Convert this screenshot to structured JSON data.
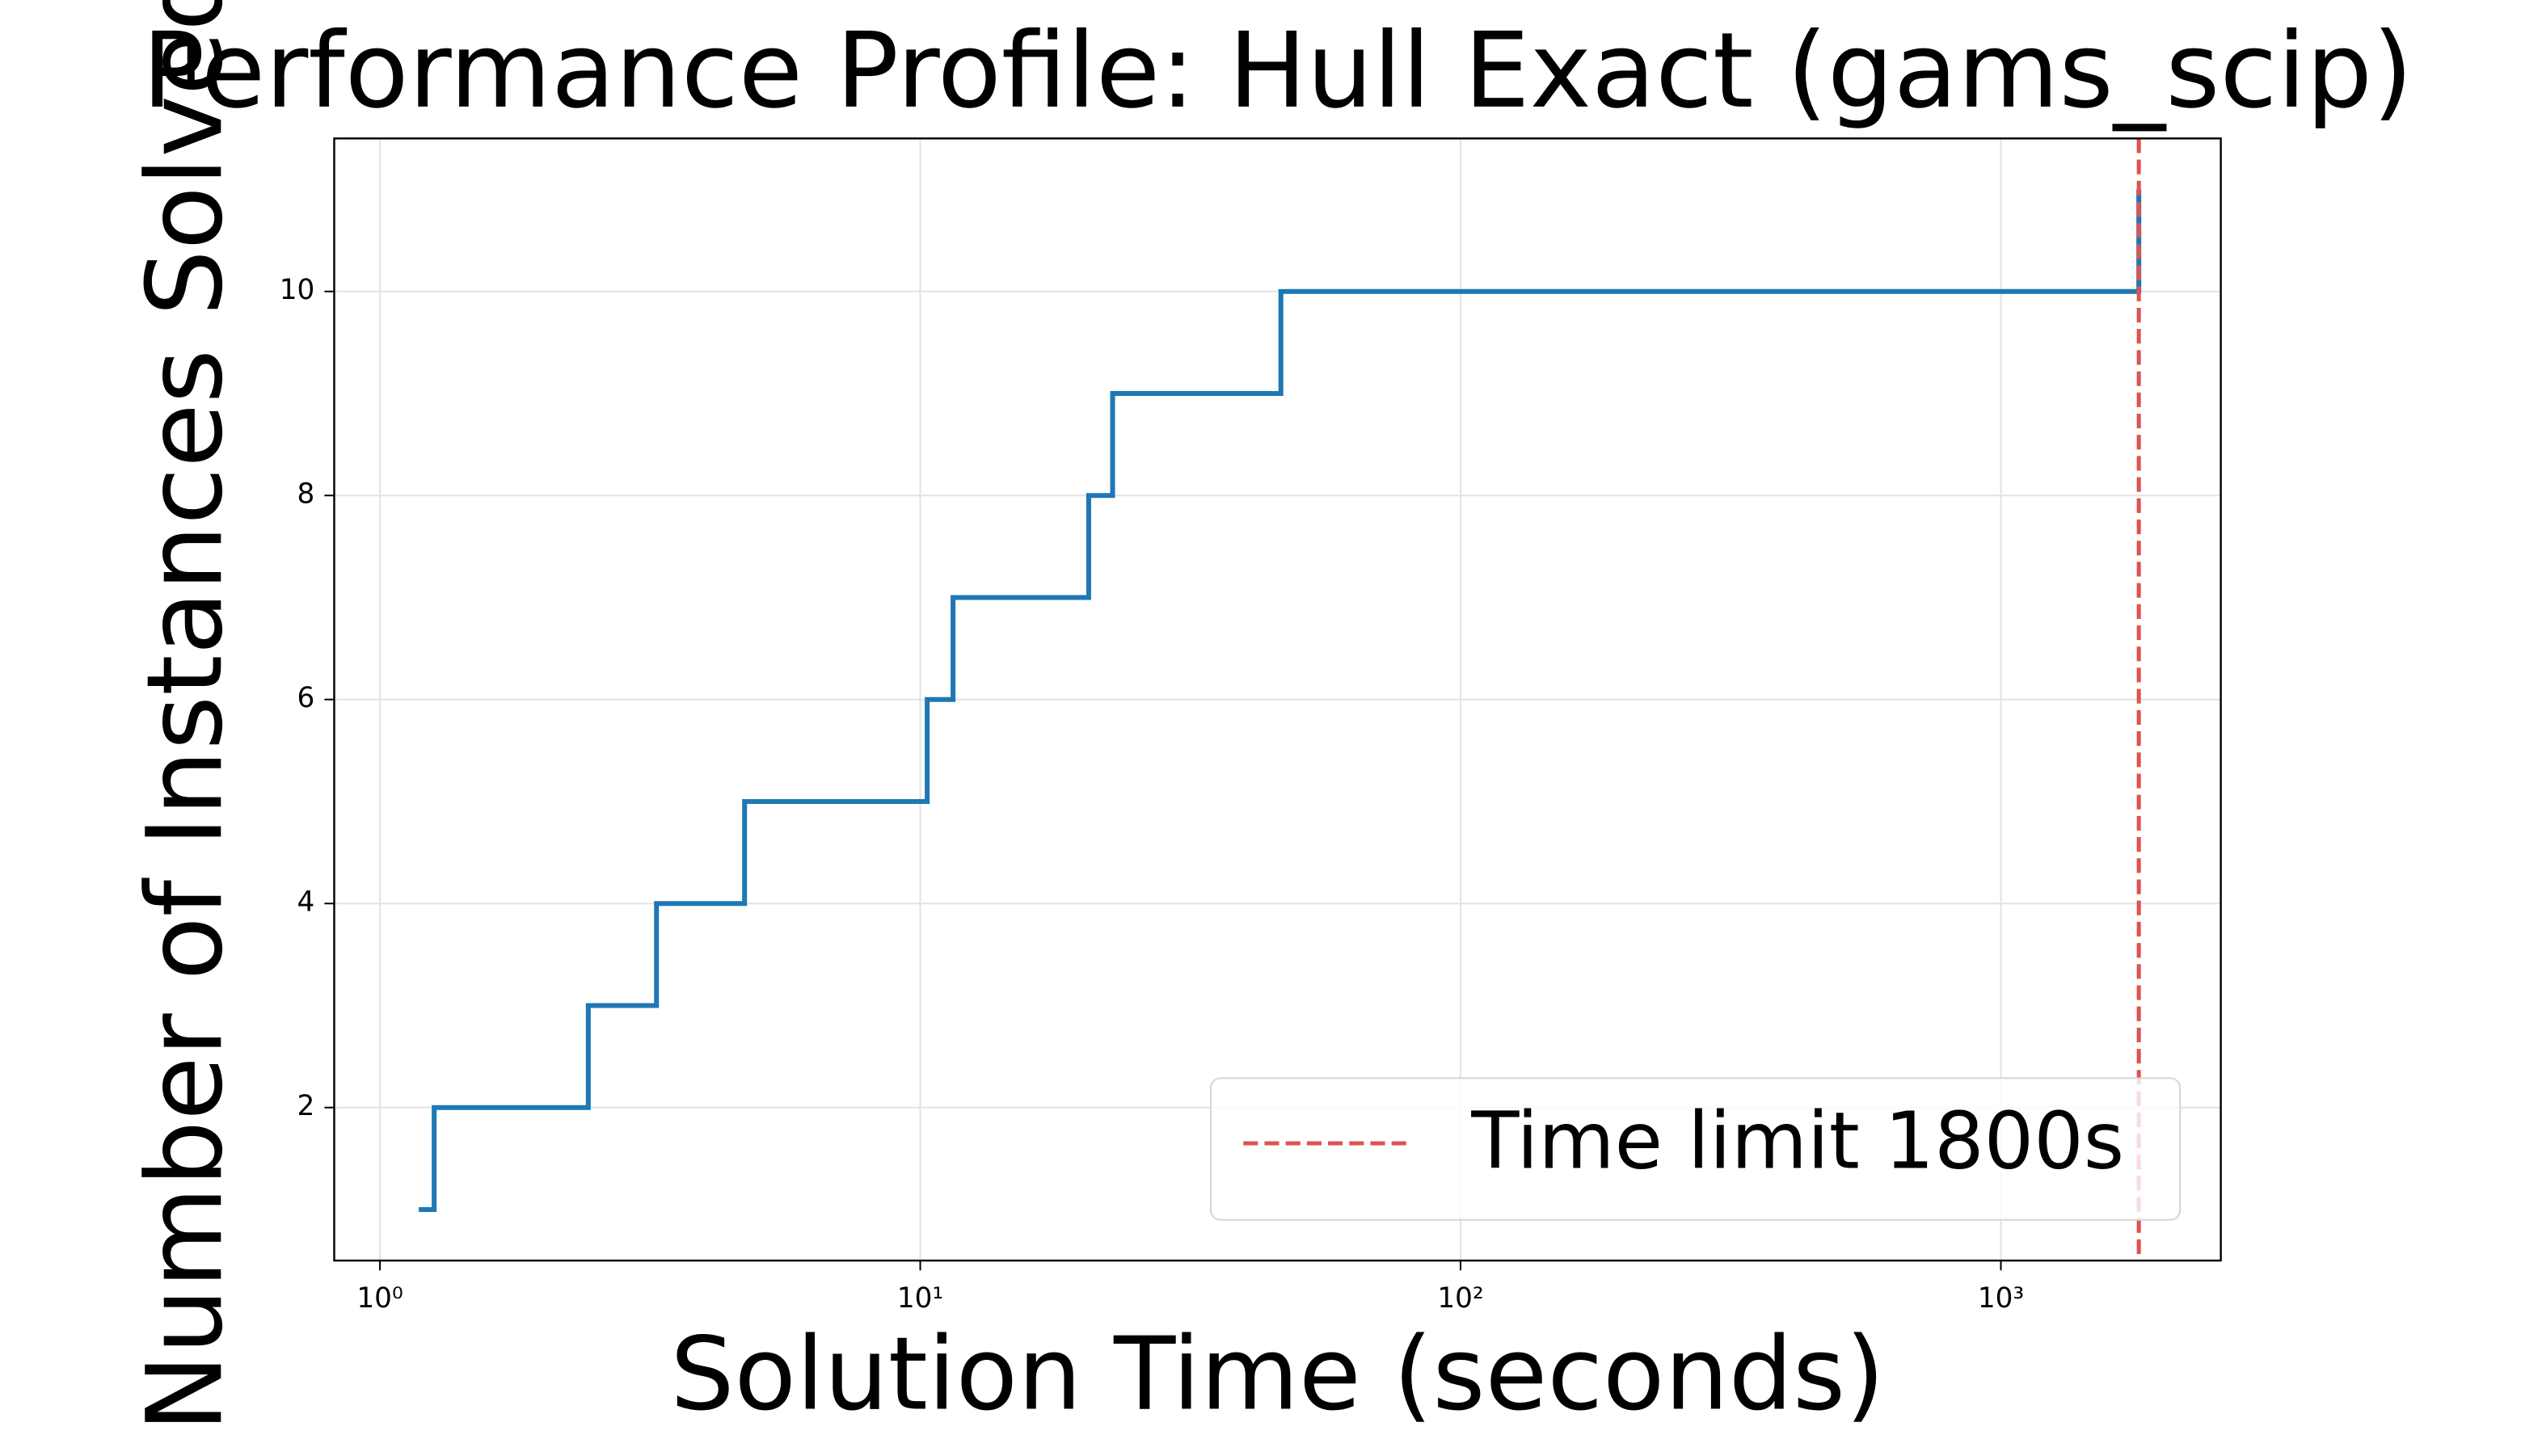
{
  "chart_data": {
    "type": "line",
    "drawstyle": "steps-post",
    "title": "Performance Profile: Hull Exact (gams_scip)",
    "x_label": "Solution Time (seconds)",
    "y_label": "Number of Instances Solved",
    "xscale": "log",
    "x": [
      1.18,
      1.26,
      2.43,
      3.25,
      4.73,
      10.3,
      11.5,
      20.5,
      22.7,
      46.5,
      1800
    ],
    "series": [
      {
        "name": "gams_scip",
        "color": "#1f77b4",
        "values": [
          1,
          2,
          3,
          4,
          5,
          6,
          7,
          8,
          9,
          10,
          11
        ]
      }
    ],
    "xlim": [
      0.823,
      2553
    ],
    "ylim": [
      0.5,
      11.5
    ],
    "xticks": [
      {
        "value": 1,
        "label": "10⁰"
      },
      {
        "value": 10,
        "label": "10¹"
      },
      {
        "value": 100,
        "label": "10²"
      },
      {
        "value": 1000,
        "label": "10³"
      }
    ],
    "yticks": [
      2,
      4,
      6,
      8,
      10
    ],
    "grid": true,
    "time_limit": {
      "x": 1800,
      "label": "Time limit 1800s",
      "color": "#e05252"
    },
    "legend": "lower right"
  }
}
